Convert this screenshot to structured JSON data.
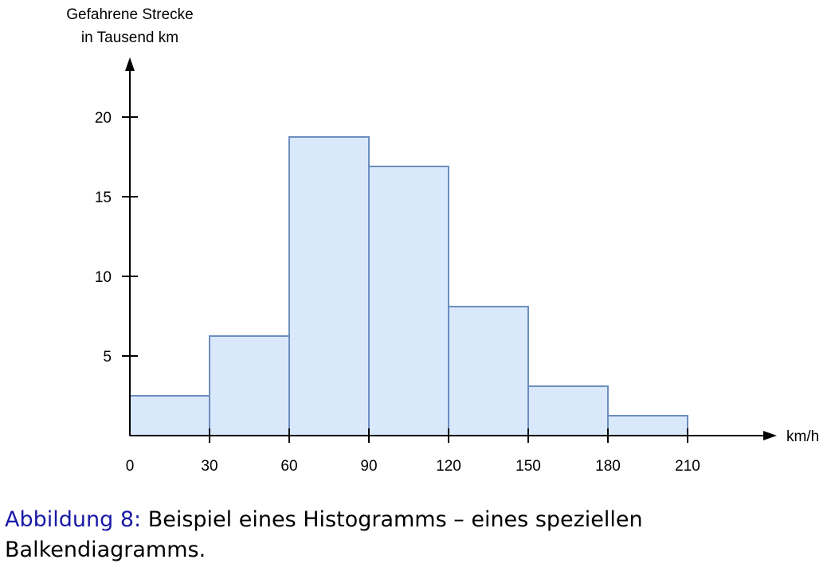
{
  "chart_data": {
    "type": "bar",
    "histogram": true,
    "bin_edges": [
      0,
      30,
      60,
      90,
      120,
      150,
      180,
      210
    ],
    "values": [
      2.5,
      6.25,
      18.75,
      16.9,
      8.1,
      3.1,
      1.25
    ],
    "x_tick_labels": [
      "0",
      "30",
      "60",
      "90",
      "120",
      "150",
      "180",
      "210"
    ],
    "y_ticks": [
      5,
      10,
      15,
      20
    ],
    "y_tick_labels": [
      "5",
      "10",
      "15",
      "20"
    ],
    "xlabel": "km/h",
    "ylabel_line1": "Gefahrene Strecke",
    "ylabel_line2": "in Tausend km",
    "xlim": [
      0,
      240
    ],
    "ylim": [
      0,
      22.5
    ],
    "grid": false,
    "bar_fill": "#dae8fc",
    "bar_stroke": "#6c8ebf"
  },
  "caption": {
    "label": "Abbildung 8:",
    "text": " Beispiel eines Histogramms – eines speziellen Balkendiagramms."
  }
}
